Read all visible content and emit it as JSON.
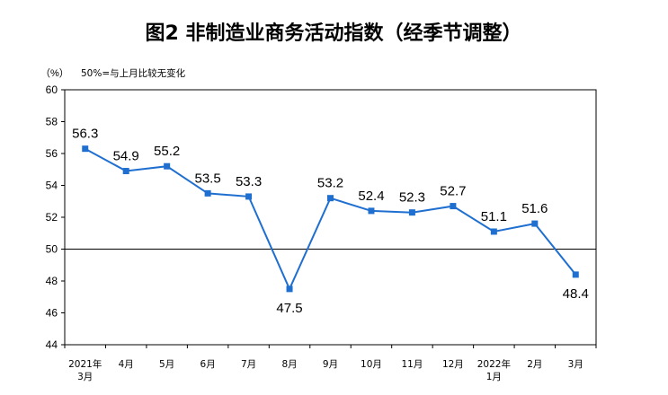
{
  "chart_data": {
    "type": "line",
    "title": "图2  非制造业商务活动指数（经季节调整）",
    "ylabel": "（%）",
    "note": "50%=与上月比较无变化",
    "ylim": [
      44,
      60
    ],
    "yticks": [
      44,
      46,
      48,
      50,
      52,
      54,
      56,
      58,
      60
    ],
    "reference_line": 50,
    "color": "#1f6fd1",
    "categories": [
      [
        "2021年",
        "3月"
      ],
      [
        "4月"
      ],
      [
        "5月"
      ],
      [
        "6月"
      ],
      [
        "7月"
      ],
      [
        "8月"
      ],
      [
        "9月"
      ],
      [
        "10月"
      ],
      [
        "11月"
      ],
      [
        "12月"
      ],
      [
        "2022年",
        "1月"
      ],
      [
        "2月"
      ],
      [
        "3月"
      ]
    ],
    "values": [
      56.3,
      54.9,
      55.2,
      53.5,
      53.3,
      47.5,
      53.2,
      52.4,
      52.3,
      52.7,
      51.1,
      51.6,
      48.4
    ],
    "value_labels": [
      "56.3",
      "54.9",
      "55.2",
      "53.5",
      "53.3",
      "47.5",
      "53.2",
      "52.4",
      "52.3",
      "52.7",
      "51.1",
      "51.6",
      "48.4"
    ],
    "label_position": [
      "above",
      "above",
      "above",
      "above",
      "above",
      "below",
      "above",
      "above",
      "above",
      "above",
      "above",
      "above",
      "below"
    ]
  }
}
